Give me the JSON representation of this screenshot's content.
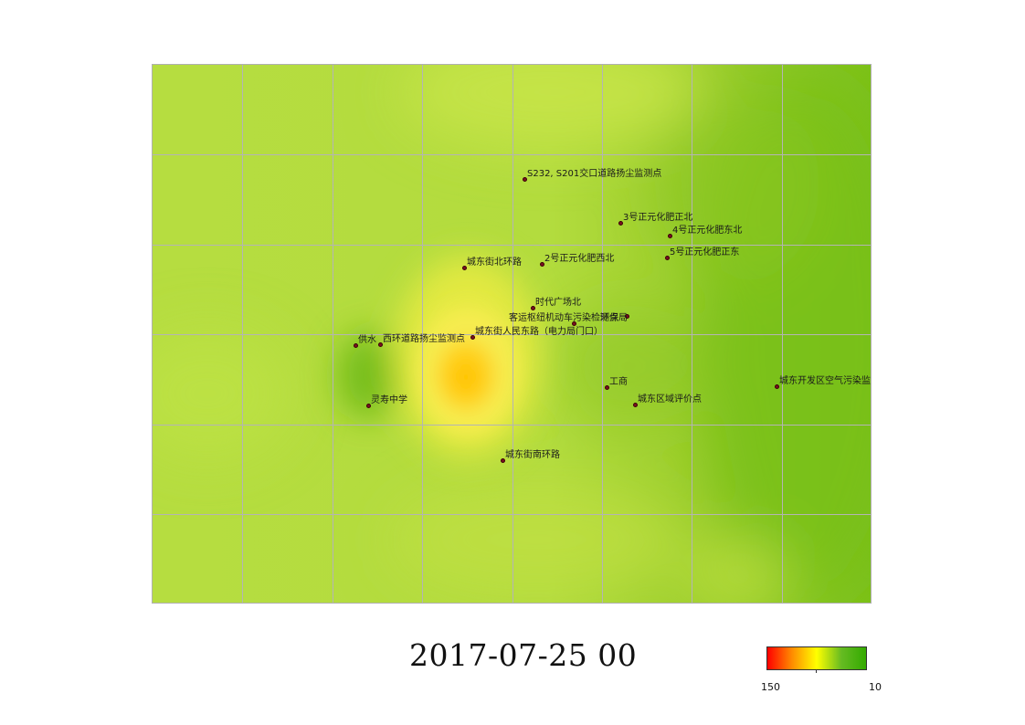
{
  "title": "2017-07-25 00",
  "colors": {
    "base": "#b8e040",
    "light": "#c9e64a",
    "deep": "#84c41c",
    "hot_center": "#ffcc00",
    "hot_outer": "#f5ee3a",
    "grid": "#b4b4b4",
    "marker": "#7a1020"
  },
  "legend": {
    "max_label": "150",
    "min_label": "10",
    "gradient": [
      "#ff0000",
      "#ff8c00",
      "#ffff00",
      "#66bb22",
      "#33aa00"
    ]
  },
  "stations": [
    {
      "name": "S232, S201交口道路扬尘监测点"
    },
    {
      "name": "3号正元化肥正北"
    },
    {
      "name": "4号正元化肥东北"
    },
    {
      "name": "5号正元化肥正东"
    },
    {
      "name": "城东街北环路"
    },
    {
      "name": "2号正元化肥西北"
    },
    {
      "name": "时代广场北"
    },
    {
      "name": "环保局"
    },
    {
      "name": "客运枢纽机动车污染检测点"
    },
    {
      "name": "城东街人民东路（电力局门口）"
    },
    {
      "name": "供水"
    },
    {
      "name": "西环道路扬尘监测点"
    },
    {
      "name": "工商"
    },
    {
      "name": "城东区域评价点"
    },
    {
      "name": "城东开发区空气污染监测点"
    },
    {
      "name": "灵寿中学"
    },
    {
      "name": "城东街南环路"
    }
  ]
}
